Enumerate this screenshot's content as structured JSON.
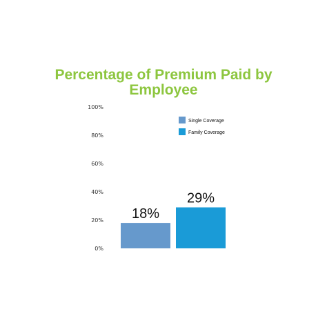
{
  "chart_data": {
    "type": "bar",
    "title_lines": [
      "Percentage of Premium Paid by",
      "Employee"
    ],
    "categories": [
      "Single Coverage",
      "Family Coverage"
    ],
    "values": [
      18,
      29
    ],
    "data_labels": [
      "18%",
      "29%"
    ],
    "colors": [
      "#6699cc",
      "#1a9bd7"
    ],
    "ylim": [
      0,
      100
    ],
    "yticks": [
      0,
      20,
      40,
      60,
      80,
      100
    ],
    "ytick_labels": [
      "0%",
      "20%",
      "40%",
      "60%",
      "80%",
      "100%"
    ],
    "legend": {
      "position": "top-right",
      "entries": [
        {
          "label": "Single Coverage",
          "color": "#6699cc"
        },
        {
          "label": "Family Coverage",
          "color": "#1a9bd7"
        }
      ]
    },
    "grid": false
  }
}
